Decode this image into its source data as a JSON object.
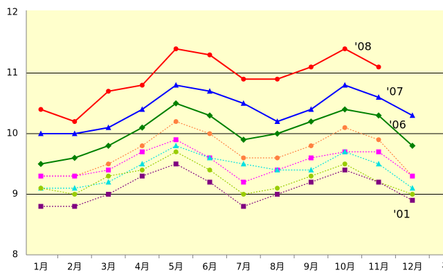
{
  "chart_data": {
    "type": "line",
    "categories": [
      "1月",
      "2月",
      "3月",
      "4月",
      "5月",
      "6月",
      "7月",
      "8月",
      "9月",
      "10月",
      "11月",
      "12月",
      "平"
    ],
    "ylim": [
      8,
      12
    ],
    "yticks": [
      8,
      9,
      10,
      11,
      12
    ],
    "grid": true,
    "series": [
      {
        "name": "'08",
        "color": "#ff0000",
        "marker": "circle",
        "dashed": false,
        "values": [
          10.4,
          10.2,
          10.7,
          10.8,
          11.4,
          11.3,
          10.9,
          10.9,
          11.1,
          11.4,
          11.1,
          null,
          null
        ]
      },
      {
        "name": "'07",
        "color": "#0000ff",
        "marker": "triangle",
        "dashed": false,
        "values": [
          10.0,
          10.0,
          10.1,
          10.4,
          10.8,
          10.7,
          10.5,
          10.2,
          10.4,
          10.8,
          10.6,
          10.3,
          null
        ]
      },
      {
        "name": "'06",
        "color": "#008000",
        "marker": "diamond",
        "dashed": false,
        "values": [
          9.5,
          9.6,
          9.8,
          10.1,
          10.5,
          10.3,
          9.9,
          10.0,
          10.2,
          10.4,
          10.3,
          9.8,
          null
        ]
      },
      {
        "color": "#ff8040",
        "marker": "circle",
        "dashed": true,
        "values": [
          9.3,
          9.3,
          9.5,
          9.8,
          10.2,
          10.0,
          9.6,
          9.6,
          9.8,
          10.1,
          9.9,
          9.3,
          null
        ]
      },
      {
        "color": "#ff00ff",
        "marker": "square",
        "dashed": true,
        "values": [
          9.3,
          9.3,
          9.4,
          9.7,
          9.9,
          9.6,
          9.2,
          9.4,
          9.6,
          9.7,
          9.7,
          9.3,
          null
        ]
      },
      {
        "color": "#00e0e0",
        "marker": "triangle",
        "dashed": true,
        "values": [
          9.1,
          9.1,
          9.2,
          9.5,
          9.8,
          9.6,
          9.5,
          9.4,
          9.4,
          9.7,
          9.5,
          9.1,
          null
        ]
      },
      {
        "color": "#99cc00",
        "marker": "circle",
        "dashed": true,
        "values": [
          9.1,
          9.0,
          9.3,
          9.4,
          9.7,
          9.4,
          9.0,
          9.1,
          9.3,
          9.5,
          9.2,
          9.0,
          null
        ]
      },
      {
        "name": "'01",
        "color": "#800080",
        "marker": "square",
        "dashed": true,
        "values": [
          8.8,
          8.8,
          9.0,
          9.3,
          9.5,
          9.2,
          8.8,
          9.0,
          9.2,
          9.4,
          9.2,
          8.9,
          null
        ]
      }
    ]
  }
}
